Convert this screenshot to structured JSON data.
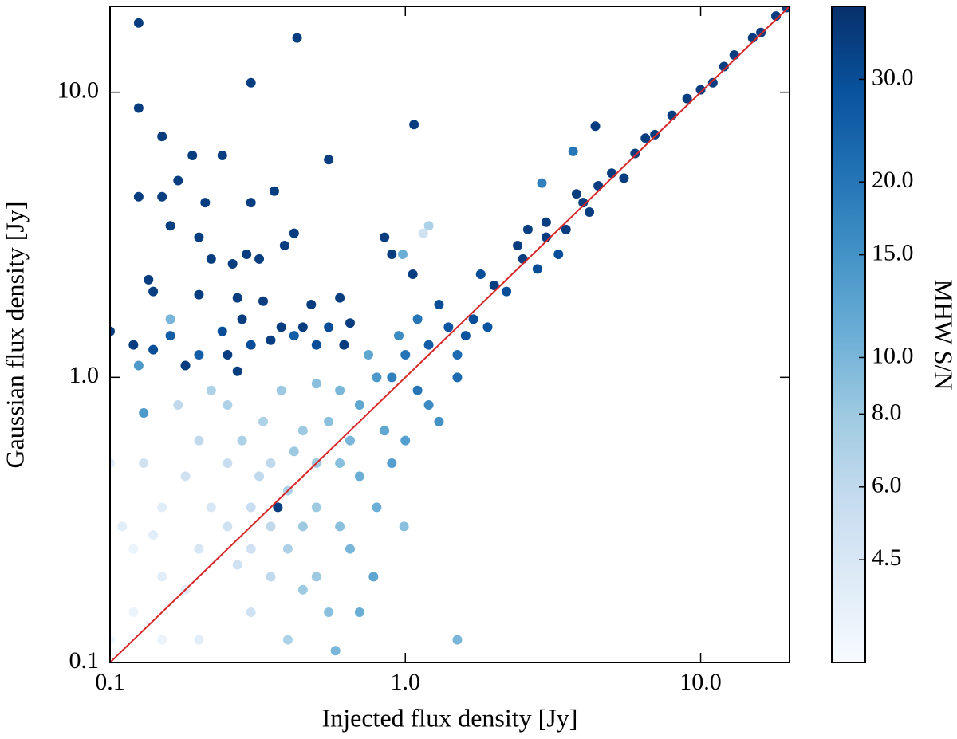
{
  "chart_data": {
    "type": "scatter",
    "x_label": "Injected flux density [Jy]",
    "y_label": "Gaussian flux density [Jy]",
    "colorbar_label": "MHW S/N",
    "xscale": "log",
    "yscale": "log",
    "color_scale": "log",
    "xlim": [
      0.1,
      20
    ],
    "ylim": [
      0.1,
      20
    ],
    "clim": [
      3,
      40
    ],
    "xticks": [
      0.1,
      {
        "value": 1,
        "label": "1.0"
      },
      {
        "value": 10,
        "label": "10.0"
      }
    ],
    "yticks": [
      0.1,
      {
        "value": 1,
        "label": "1.0"
      },
      {
        "value": 10,
        "label": "10.0"
      }
    ],
    "cticks": [
      {
        "value": 30,
        "label": "30.0"
      },
      {
        "value": 20,
        "label": "20.0"
      },
      {
        "value": 15,
        "label": "15.0"
      },
      {
        "value": 10,
        "label": "10.0"
      },
      {
        "value": 8,
        "label": "8.0"
      },
      {
        "value": 6,
        "label": "6.0"
      },
      4.5
    ],
    "colormap": [
      "#f7fbff",
      "#deebf7",
      "#c6dbef",
      "#9ecae1",
      "#6baed6",
      "#4292c6",
      "#2171b5",
      "#08519c",
      "#08306b"
    ],
    "reference_line": {
      "x": [
        0.1,
        20
      ],
      "y": [
        0.1,
        20
      ],
      "color": "#d62728"
    },
    "x": [
      0.125,
      0.43,
      0.3,
      0.125,
      1.07,
      0.15,
      0.19,
      0.24,
      0.55,
      0.17,
      0.125,
      0.15,
      0.36,
      0.3,
      0.21,
      0.16,
      0.22,
      0.26,
      0.32,
      0.2,
      0.42,
      0.39,
      0.29,
      0.135,
      0.14,
      0.2,
      0.27,
      0.33,
      0.48,
      0.6,
      0.65,
      0.55,
      0.45,
      0.38,
      0.28,
      0.24,
      0.16,
      0.1,
      0.12,
      0.14,
      0.2,
      0.25,
      0.3,
      0.35,
      0.42,
      0.5,
      0.62,
      0.18,
      0.27,
      0.9,
      1.06,
      0.85,
      0.37,
      1.2,
      1.15,
      0.98,
      0.125,
      0.16,
      0.13,
      1.5,
      0.78,
      0.99,
      2,
      2.5,
      3,
      4,
      5,
      6,
      8,
      10,
      12,
      15,
      18,
      19.5,
      2.2,
      3.5,
      4.5,
      7,
      9,
      11,
      13,
      16,
      3.0,
      2.8,
      3.8,
      5.5,
      6.5,
      1.8,
      1.6,
      2.4,
      4.2,
      3.7,
      2.9,
      4.4,
      3.3,
      2.6,
      1.2,
      1.4,
      1.5,
      1.3,
      1.1,
      1.7,
      1.0,
      0.9,
      1.2,
      1.5,
      1.9,
      0.8,
      0.7,
      1.1,
      0.95,
      1.3,
      0.85,
      0.75,
      1.0,
      0.65,
      0.6,
      0.55,
      0.5,
      0.45,
      0.7,
      0.8,
      0.9,
      0.6,
      0.4,
      0.35,
      0.3,
      0.25,
      0.2,
      0.15,
      0.12,
      0.1,
      0.11,
      0.13,
      0.15,
      0.18,
      0.2,
      0.22,
      0.25,
      0.28,
      0.3,
      0.35,
      0.4,
      0.45,
      0.5,
      0.55,
      0.4,
      0.3,
      0.2,
      0.15,
      0.12,
      0.1,
      0.17,
      0.25,
      0.33,
      0.38,
      0.5,
      0.45,
      0.6,
      0.65,
      0.35,
      0.27,
      0.18,
      0.14,
      0.5,
      0.58,
      0.7,
      0.22,
      0.42,
      0.32
    ],
    "values": [
      17.5,
      15.5,
      10.8,
      8.8,
      7.7,
      7.0,
      6.0,
      6.0,
      5.8,
      4.9,
      4.3,
      4.3,
      4.5,
      4.1,
      4.1,
      3.4,
      2.6,
      2.5,
      2.6,
      3.1,
      3.2,
      2.9,
      2.7,
      2.2,
      2.0,
      1.95,
      1.9,
      1.85,
      1.8,
      1.9,
      1.55,
      1.5,
      1.5,
      1.5,
      1.6,
      1.45,
      1.4,
      1.45,
      1.3,
      1.25,
      1.2,
      1.2,
      1.3,
      1.35,
      1.4,
      1.3,
      1.3,
      1.1,
      1.05,
      2.7,
      2.3,
      3.1,
      0.35,
      3.4,
      3.2,
      2.7,
      1.1,
      1.6,
      0.75,
      0.12,
      0.2,
      0.3,
      2.1,
      2.6,
      3.1,
      4.1,
      5.2,
      6.1,
      8.3,
      10.2,
      12.3,
      15.5,
      18.5,
      19.8,
      2.0,
      3.3,
      4.7,
      7.1,
      9.5,
      10.8,
      13.5,
      16.2,
      3.5,
      2.4,
      4.4,
      5.0,
      6.9,
      2.3,
      1.4,
      2.9,
      3.8,
      6.2,
      4.8,
      7.6,
      2.7,
      3.3,
      1.3,
      1.5,
      1.2,
      1.8,
      0.9,
      1.6,
      1.2,
      1.0,
      0.8,
      1.0,
      1.5,
      1.0,
      0.8,
      1.6,
      1.4,
      0.7,
      0.65,
      1.2,
      0.6,
      0.6,
      0.9,
      0.7,
      0.5,
      0.65,
      0.45,
      0.35,
      0.5,
      0.3,
      0.4,
      0.5,
      0.35,
      0.3,
      0.25,
      0.2,
      0.15,
      0.12,
      0.3,
      0.5,
      0.35,
      0.45,
      0.6,
      0.35,
      0.5,
      0.6,
      0.25,
      0.2,
      0.25,
      0.3,
      0.2,
      0.15,
      0.12,
      0.15,
      0.12,
      0.12,
      0.25,
      0.5,
      0.8,
      0.8,
      0.7,
      0.9,
      0.95,
      0.18,
      0.5,
      0.25,
      0.3,
      0.22,
      0.18,
      0.28,
      0.35,
      0.11,
      0.15,
      0.9,
      0.55,
      0.45
    ],
    "sn": [
      35,
      35,
      35,
      35,
      35,
      35,
      35,
      35,
      35,
      35,
      35,
      35,
      35,
      35,
      35,
      35,
      35,
      35,
      35,
      35,
      35,
      35,
      35,
      35,
      35,
      35,
      35,
      35,
      35,
      35,
      35,
      30,
      35,
      35,
      35,
      30,
      25,
      35,
      35,
      30,
      25,
      35,
      30,
      35,
      25,
      30,
      35,
      35,
      35,
      35,
      35,
      35,
      35,
      7,
      5,
      11,
      14,
      10,
      14,
      10,
      12,
      9,
      35,
      35,
      35,
      35,
      35,
      35,
      35,
      35,
      35,
      35,
      35,
      35,
      30,
      35,
      35,
      35,
      35,
      35,
      35,
      35,
      35,
      30,
      35,
      35,
      35,
      30,
      28,
      35,
      35,
      20,
      18,
      35,
      30,
      35,
      25,
      28,
      22,
      30,
      20,
      30,
      20,
      18,
      16,
      22,
      28,
      14,
      12,
      20,
      16,
      15,
      12,
      12,
      13,
      10,
      10,
      9,
      8,
      8,
      11,
      11,
      13,
      9,
      7,
      6,
      5.5,
      5,
      4.5,
      4,
      3.5,
      3.3,
      4,
      5,
      4,
      5,
      6,
      4.5,
      5.5,
      7,
      5,
      6,
      7,
      8,
      8,
      9,
      7,
      5,
      4,
      3.5,
      3.5,
      4,
      6,
      7,
      7,
      8,
      9,
      8,
      9,
      10,
      6,
      5,
      4,
      4,
      8,
      10,
      11,
      7,
      8,
      6
    ]
  }
}
